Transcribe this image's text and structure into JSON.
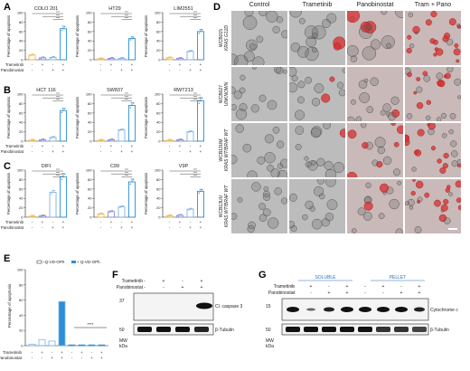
{
  "panels": {
    "A": "A",
    "B": "B",
    "C": "C",
    "D": "D",
    "E": "E",
    "F": "F",
    "G": "G"
  },
  "common": {
    "ylabel": "Percentage of apoptosis",
    "row_trametinib": "Trametinib",
    "row_panobinostat": "Panobinostat",
    "minus": "-",
    "plus": "+",
    "sig": "****"
  },
  "chart_data": [
    {
      "id": "A1",
      "type": "bar",
      "title": "COLO 201",
      "categories": [
        "ctrl",
        "tram",
        "pano",
        "tram+pano"
      ],
      "values": [
        10,
        4,
        5,
        66
      ],
      "ylim": [
        0,
        100
      ],
      "yticks": [
        0,
        20,
        40,
        60,
        80,
        100
      ]
    },
    {
      "id": "A2",
      "type": "bar",
      "title": "HT29",
      "categories": [
        "ctrl",
        "tram",
        "pano",
        "tram+pano"
      ],
      "values": [
        2,
        3,
        3,
        45
      ],
      "ylim": [
        0,
        100
      ],
      "yticks": [
        0,
        20,
        40,
        60,
        80,
        100
      ]
    },
    {
      "id": "A3",
      "type": "bar",
      "title": "LIM2551",
      "categories": [
        "ctrl",
        "tram",
        "pano",
        "tram+pano"
      ],
      "values": [
        4,
        3,
        18,
        60
      ],
      "ylim": [
        0,
        100
      ],
      "yticks": [
        0,
        20,
        40,
        60,
        80,
        100
      ]
    },
    {
      "id": "B1",
      "type": "bar",
      "title": "HCT 116",
      "categories": [
        "ctrl",
        "tram",
        "pano",
        "tram+pano"
      ],
      "values": [
        2,
        3,
        8,
        65
      ],
      "ylim": [
        0,
        100
      ],
      "yticks": [
        0,
        20,
        40,
        60,
        80,
        100
      ]
    },
    {
      "id": "B2",
      "type": "bar",
      "title": "SW837",
      "categories": [
        "ctrl",
        "tram",
        "pano",
        "tram+pano"
      ],
      "values": [
        2,
        3,
        24,
        76
      ],
      "ylim": [
        0,
        100
      ],
      "yticks": [
        0,
        20,
        40,
        60,
        80,
        100
      ]
    },
    {
      "id": "B3",
      "type": "bar",
      "title": "RWT213",
      "categories": [
        "ctrl",
        "tram",
        "pano",
        "tram+pano"
      ],
      "values": [
        2,
        3,
        20,
        86
      ],
      "ylim": [
        0,
        100
      ],
      "yticks": [
        0,
        20,
        40,
        60,
        80,
        100
      ]
    },
    {
      "id": "C1",
      "type": "bar",
      "title": "DIFI",
      "categories": [
        "ctrl",
        "tram",
        "pano",
        "tram+pano"
      ],
      "values": [
        2,
        3,
        53,
        86
      ],
      "ylim": [
        0,
        100
      ],
      "yticks": [
        0,
        20,
        40,
        60,
        80,
        100
      ]
    },
    {
      "id": "C2",
      "type": "bar",
      "title": "C99",
      "categories": [
        "ctrl",
        "tram",
        "pano",
        "tram+pano"
      ],
      "values": [
        7,
        12,
        22,
        75
      ],
      "ylim": [
        0,
        100
      ],
      "yticks": [
        0,
        20,
        40,
        60,
        80,
        100
      ]
    },
    {
      "id": "C3",
      "type": "bar",
      "title": "V9P",
      "categories": [
        "ctrl",
        "tram",
        "pano",
        "tram+pano"
      ],
      "values": [
        3,
        4,
        17,
        55
      ],
      "ylim": [
        0,
        100
      ],
      "yticks": [
        0,
        20,
        40,
        60,
        80,
        100
      ]
    }
  ],
  "chart_E": {
    "type": "bar",
    "legend_minus": "−Q-VD-OPh",
    "legend_plus": "+ Q-VD-OPh",
    "values": [
      2,
      8,
      6,
      58,
      1,
      1,
      1,
      1
    ],
    "ylim": [
      0,
      100
    ],
    "yticks": [
      0,
      20,
      40,
      60,
      80,
      100
    ],
    "tram_row": [
      "-",
      "+",
      "-",
      "+",
      "-",
      "+",
      "-",
      "+"
    ],
    "pano_row": [
      "-",
      "-",
      "+",
      "+",
      "-",
      "-",
      "+",
      "+"
    ]
  },
  "panel_D": {
    "columns": [
      "Control",
      "Trametinib",
      "Panobinostat",
      "Tram + Pano"
    ],
    "rows": [
      {
        "id": "WCB015",
        "sub": "KRAS G12D"
      },
      {
        "id": "WCB027",
        "sub": "UNKNOWN"
      },
      {
        "id": "WCB13UM",
        "sub": "KRAS WT/BRAF WT"
      },
      {
        "id": "WCB13UU",
        "sub": "KRAS WT/BRAF WT"
      }
    ]
  },
  "panel_F": {
    "tram_row": [
      "-",
      "+",
      "-",
      "+"
    ],
    "pano_row": [
      "-",
      "-",
      "+",
      "+"
    ],
    "band1": "Cl. caspase 3",
    "band2": "β-Tubulin",
    "mw1": "37",
    "mw2": "50",
    "mw": "MW",
    "kda": "kDa"
  },
  "panel_G": {
    "soluble": "SOLUBLE",
    "pellet": "PELLET",
    "tram_row": [
      "-",
      "+",
      "-",
      "+",
      "-",
      "+",
      "-",
      "+"
    ],
    "pano_row": [
      "-",
      "-",
      "+",
      "+",
      "-",
      "-",
      "+",
      "+"
    ],
    "band1": "Cytochrome c",
    "band2": "β-Tubulin",
    "mw1": "15",
    "mw2": "50",
    "mw": "MW",
    "kda": "kDa"
  },
  "colors": {
    "ctrl": "#f2b84b",
    "tram": "#8b8fd6",
    "pano": "#7fb3e6",
    "combo": "#2b8fd6",
    "red": "#d62f2f"
  }
}
